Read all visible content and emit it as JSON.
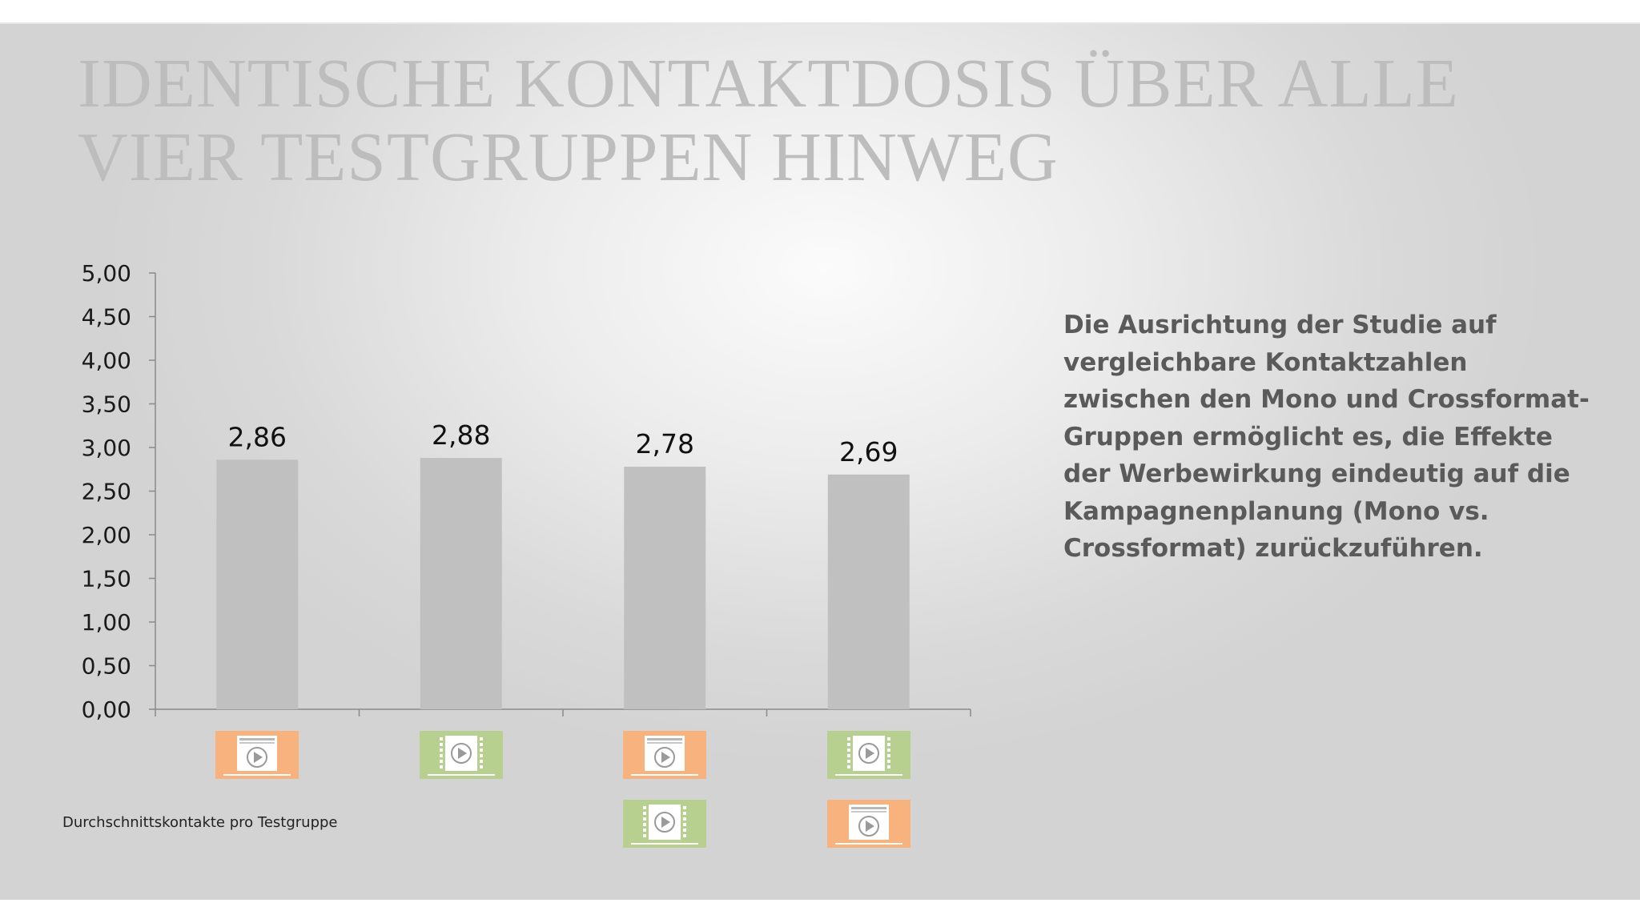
{
  "slide": {
    "title": "IDENTISCHE KONTAKTDOSIS ÜBER ALLE VIER TESTGRUPPEN HINWEG",
    "body_text": "Die Ausrichtung der Studie auf vergleichbare Kontaktzahlen zwischen den Mono und Crossformat-Gruppen ermöglicht es, die Effekte der Werbewirkung eindeutig auf die Kampagnenplanung (Mono vs. Crossformat) zurückzuführen.",
    "footnote": "Durchschnittskontakte pro Testgruppe"
  },
  "colors": {
    "bar": "#c0c0c0",
    "title": "#bdbdbd",
    "text": "#5a5a5a",
    "online_video_icon": "#f8b27d",
    "tv_film_icon": "#b7d08f"
  },
  "chart_data": {
    "type": "bar",
    "title": "",
    "xlabel": "",
    "ylabel": "",
    "ylim": [
      0,
      5
    ],
    "y_ticks": [
      "0,00",
      "0,50",
      "1,00",
      "1,50",
      "2,00",
      "2,50",
      "3,00",
      "3,50",
      "4,00",
      "4,50",
      "5,00"
    ],
    "grid": false,
    "legend": "none",
    "categories": [
      [
        "online-video-icon"
      ],
      [
        "tv-film-icon"
      ],
      [
        "online-video-icon",
        "tv-film-icon"
      ],
      [
        "tv-film-icon",
        "online-video-icon"
      ]
    ],
    "values": [
      2.86,
      2.88,
      2.78,
      2.69
    ],
    "value_labels": [
      "2,86",
      "2,88",
      "2,78",
      "2,69"
    ]
  }
}
